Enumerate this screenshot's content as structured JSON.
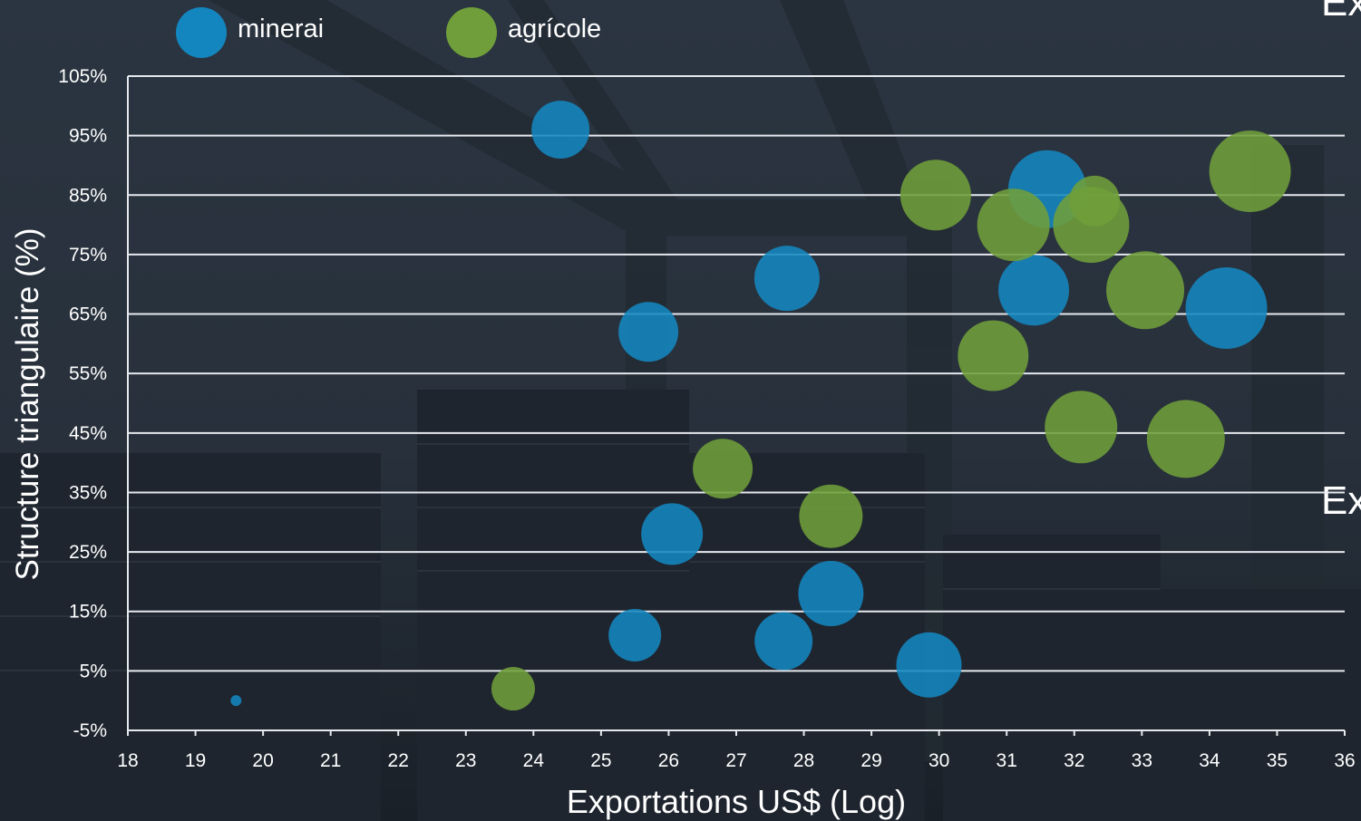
{
  "background_fragments": {
    "top_right": "Ex",
    "mid_right": "Ex"
  },
  "colors": {
    "minerai": "#1486bf",
    "agricole": "#6f9e3a",
    "grid": "#e6e9ee",
    "text": "#ffffff"
  },
  "chart_data": {
    "type": "scatter",
    "xlabel": "Exportations US$ (Log)",
    "ylabel": "Structure triangulaire (%)",
    "xlim": [
      18,
      36
    ],
    "ylim": [
      -5,
      105
    ],
    "x_ticks": [
      "18",
      "19",
      "20",
      "21",
      "22",
      "23",
      "24",
      "25",
      "26",
      "27",
      "28",
      "29",
      "30",
      "31",
      "32",
      "33",
      "34",
      "35",
      "36"
    ],
    "y_ticks": [
      "105%",
      "95%",
      "85%",
      "75%",
      "65%",
      "55%",
      "45%",
      "35%",
      "25%",
      "15%",
      "5%",
      "-5%"
    ],
    "grid": "horizontal",
    "legend_position": "top-left",
    "series": [
      {
        "name": "minerai",
        "color": "#1486bf",
        "points": [
          {
            "x": 19.6,
            "y": 0,
            "size": 12
          },
          {
            "x": 24.4,
            "y": 96,
            "size": 64
          },
          {
            "x": 25.5,
            "y": 11,
            "size": 58
          },
          {
            "x": 25.7,
            "y": 62,
            "size": 66
          },
          {
            "x": 26.05,
            "y": 28,
            "size": 68
          },
          {
            "x": 27.7,
            "y": 10,
            "size": 64
          },
          {
            "x": 27.75,
            "y": 71,
            "size": 72
          },
          {
            "x": 28.4,
            "y": 18,
            "size": 72
          },
          {
            "x": 29.85,
            "y": 6,
            "size": 72
          },
          {
            "x": 31.4,
            "y": 69,
            "size": 78
          },
          {
            "x": 31.6,
            "y": 86,
            "size": 86
          },
          {
            "x": 34.25,
            "y": 66,
            "size": 90
          }
        ]
      },
      {
        "name": "agrícole",
        "color": "#6f9e3a",
        "points": [
          {
            "x": 23.7,
            "y": 2,
            "size": 48
          },
          {
            "x": 26.8,
            "y": 39,
            "size": 66
          },
          {
            "x": 28.4,
            "y": 31,
            "size": 70
          },
          {
            "x": 29.95,
            "y": 85,
            "size": 78
          },
          {
            "x": 30.8,
            "y": 58,
            "size": 78
          },
          {
            "x": 31.1,
            "y": 80,
            "size": 80
          },
          {
            "x": 32.1,
            "y": 46,
            "size": 80
          },
          {
            "x": 32.25,
            "y": 80,
            "size": 84
          },
          {
            "x": 32.3,
            "y": 84,
            "size": 56
          },
          {
            "x": 33.05,
            "y": 69,
            "size": 86
          },
          {
            "x": 33.65,
            "y": 44,
            "size": 86
          },
          {
            "x": 34.6,
            "y": 89,
            "size": 90
          }
        ]
      }
    ]
  }
}
